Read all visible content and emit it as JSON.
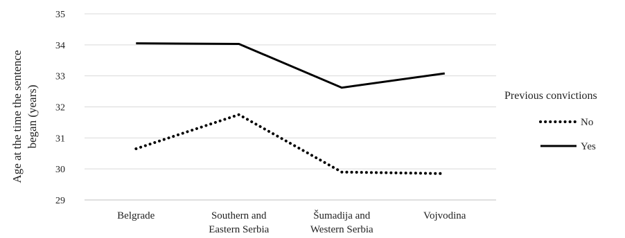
{
  "chart_data": {
    "type": "line",
    "title": "",
    "xlabel": "",
    "ylabel": "Age at the time the sentence began (years)",
    "ylabel_lines": [
      "Age at the time the sentence",
      "began (years)"
    ],
    "ylim": [
      29,
      35
    ],
    "yticks": [
      29,
      30,
      31,
      32,
      33,
      34,
      35
    ],
    "grid": true,
    "categories": [
      [
        "Belgrade"
      ],
      [
        "Southern and",
        "Eastern Serbia"
      ],
      [
        "Šumadija and",
        "Western Serbia"
      ],
      [
        "Vojvodina"
      ]
    ],
    "legend": {
      "title": "Previous convictions",
      "placement": "right"
    },
    "series": [
      {
        "name": "No",
        "values": [
          30.65,
          31.75,
          29.9,
          29.85
        ],
        "color": "#000000",
        "style": "dotted"
      },
      {
        "name": "Yes",
        "values": [
          34.05,
          34.03,
          32.62,
          33.08
        ],
        "color": "#000000",
        "style": "solid"
      }
    ]
  }
}
